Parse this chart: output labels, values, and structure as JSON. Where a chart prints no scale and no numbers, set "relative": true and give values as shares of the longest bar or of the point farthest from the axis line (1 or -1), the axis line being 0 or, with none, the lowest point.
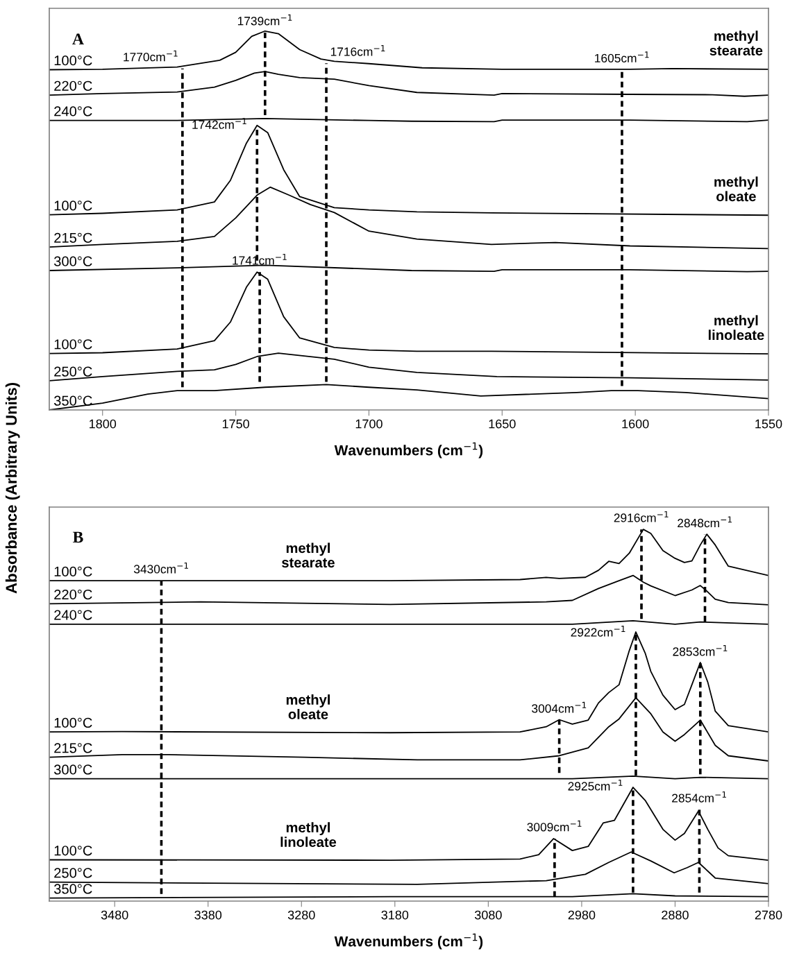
{
  "chart_data": [
    {
      "type": "line",
      "relative": true,
      "ylabel": "Absorbance (Arbitrary Units)",
      "xlabel": "Wavenumbers (cm$^{−1}$)",
      "xlim": [
        1820,
        1550
      ],
      "xticks": [
        1800,
        1750,
        1700,
        1650,
        1600,
        1550
      ],
      "tick_labels": "x",
      "grid": false,
      "legend": false,
      "annotations": [
        "A",
        "methyl\nstearate",
        "methyl\noleate",
        "methyl\nlinoleate",
        {
          "text": "1739cm$^{−1}$",
          "x": 1739,
          "y": 0.996
        },
        {
          "text": "1770cm$^{−1}$",
          "x": 1770,
          "y": 0.901
        },
        {
          "text": "1716cm$^{−1}$",
          "x": 1716,
          "y": 0.915
        },
        {
          "text": "1605cm$^{−1}$",
          "x": 1605,
          "y": 0.898
        },
        {
          "text": "1742cm$^{−1}$",
          "x": 1742,
          "y": 0.75
        },
        {
          "text": "1741cm$^{−1}$",
          "x": 1741,
          "y": 0.364
        }
      ],
      "series": [
        {
          "name": "100°C",
          "color": "#000000",
          "x": [
            1820,
            1800,
            1772,
            1756,
            1750,
            1744,
            1739,
            1734,
            1726,
            1718,
            1713,
            1700,
            1680,
            1650,
            1602,
            1586,
            1550
          ],
          "values": [
            0.898,
            0.899,
            0.905,
            0.923,
            0.944,
            0.986,
            1.0,
            0.993,
            0.951,
            0.926,
            0.92,
            0.914,
            0.903,
            0.899,
            0.899,
            0.901,
            0.899
          ]
        },
        {
          "name": "220°C",
          "color": "#000000",
          "x": [
            1820,
            1800,
            1772,
            1758,
            1750,
            1743,
            1739,
            1734,
            1726,
            1713,
            1700,
            1682,
            1653,
            1650,
            1602,
            1571,
            1559,
            1550
          ],
          "values": [
            0.831,
            0.835,
            0.839,
            0.852,
            0.87,
            0.889,
            0.893,
            0.886,
            0.877,
            0.873,
            0.856,
            0.838,
            0.831,
            0.835,
            0.833,
            0.832,
            0.828,
            0.831
          ]
        },
        {
          "name": "240°C",
          "color": "#000000",
          "x": [
            1820,
            1772,
            1739,
            1700,
            1684,
            1653,
            1650,
            1602,
            1558,
            1550
          ],
          "values": [
            0.764,
            0.764,
            0.769,
            0.764,
            0.762,
            0.761,
            0.765,
            0.765,
            0.761,
            0.765
          ]
        },
        {
          "name": "100°C",
          "color": "#000000",
          "x": [
            1820,
            1800,
            1772,
            1758,
            1752,
            1746,
            1742,
            1738,
            1732,
            1726,
            1713,
            1700,
            1682,
            1654,
            1550
          ],
          "values": [
            0.515,
            0.519,
            0.528,
            0.549,
            0.606,
            0.704,
            0.751,
            0.732,
            0.634,
            0.563,
            0.534,
            0.528,
            0.523,
            0.52,
            0.514
          ]
        },
        {
          "name": "215°C",
          "color": "#000000",
          "x": [
            1820,
            1800,
            1772,
            1758,
            1750,
            1742,
            1737,
            1730,
            1722,
            1713,
            1700,
            1682,
            1654,
            1630,
            1602,
            1550
          ],
          "values": [
            0.43,
            0.437,
            0.445,
            0.458,
            0.507,
            0.567,
            0.588,
            0.567,
            0.542,
            0.521,
            0.472,
            0.451,
            0.437,
            0.442,
            0.433,
            0.426
          ]
        },
        {
          "name": "300°C",
          "color": "#000000",
          "x": [
            1820,
            1772,
            1739,
            1684,
            1653,
            1650,
            1602,
            1558,
            1550
          ],
          "values": [
            0.368,
            0.375,
            0.382,
            0.368,
            0.366,
            0.37,
            0.37,
            0.365,
            0.366
          ]
        },
        {
          "name": "100°C",
          "color": "#000000",
          "x": [
            1820,
            1800,
            1772,
            1758,
            1752,
            1746,
            1742,
            1738,
            1732,
            1726,
            1713,
            1700,
            1682,
            1654,
            1550
          ],
          "values": [
            0.149,
            0.151,
            0.161,
            0.183,
            0.232,
            0.324,
            0.364,
            0.345,
            0.246,
            0.19,
            0.165,
            0.158,
            0.155,
            0.155,
            0.148
          ]
        },
        {
          "name": "250°C",
          "color": "#000000",
          "x": [
            1820,
            1800,
            1772,
            1758,
            1750,
            1742,
            1734,
            1713,
            1700,
            1682,
            1652,
            1602,
            1550
          ],
          "values": [
            0.077,
            0.088,
            0.102,
            0.106,
            0.12,
            0.141,
            0.15,
            0.134,
            0.113,
            0.099,
            0.088,
            0.085,
            0.079
          ]
        },
        {
          "name": "350°C",
          "color": "#000000",
          "x": [
            1820,
            1800,
            1783,
            1772,
            1758,
            1739,
            1716,
            1700,
            1682,
            1658,
            1622,
            1609,
            1599,
            1581,
            1550
          ],
          "values": [
            0,
            0.018,
            0.042,
            0.051,
            0.051,
            0.06,
            0.067,
            0.06,
            0.053,
            0.037,
            0.046,
            0.051,
            0.051,
            0.046,
            0.03
          ]
        },
        {
          "type": "line",
          "line_style": "dashed",
          "color": "#000000",
          "x": [
            1770,
            1770
          ],
          "values": [
            0.901,
            0.06
          ]
        },
        {
          "type": "line",
          "line_style": "dashed",
          "color": "#000000",
          "x": [
            1739,
            1739
          ],
          "values": [
            0.996,
            0.778
          ]
        },
        {
          "type": "line",
          "line_style": "dashed",
          "color": "#000000",
          "x": [
            1742,
            1742
          ],
          "values": [
            0.75,
            0.394
          ]
        },
        {
          "type": "line",
          "line_style": "dashed",
          "color": "#000000",
          "x": [
            1741,
            1741
          ],
          "values": [
            0.364,
            0.074
          ]
        },
        {
          "type": "line",
          "line_style": "dashed",
          "color": "#000000",
          "x": [
            1716,
            1716
          ],
          "values": [
            0.915,
            0.074
          ]
        },
        {
          "type": "line",
          "line_style": "dashed",
          "color": "#000000",
          "x": [
            1605,
            1605
          ],
          "values": [
            0.898,
            0.063
          ]
        }
      ]
    },
    {
      "type": "line",
      "relative": true,
      "xlabel": "Wavenumbers (cm$^{−1}$)",
      "xlim": [
        3550,
        2780
      ],
      "xticks": [
        3480,
        3380,
        3280,
        3180,
        3080,
        2980,
        2880,
        2780
      ],
      "tick_labels": "x",
      "grid": false,
      "legend": false,
      "annotations": [
        "B",
        "methyl\nstearate",
        "methyl\noleate",
        "methyl\nlinoleate",
        {
          "text": "3430cm$^{−1}$",
          "x": 3430,
          "y": 0.862
        },
        {
          "text": "2916cm$^{−1}$",
          "x": 2916,
          "y": 1.0
        },
        {
          "text": "2848cm$^{−1}$",
          "x": 2848,
          "y": 0.986
        },
        {
          "text": "2922cm$^{−1}$",
          "x": 2922,
          "y": 0.72
        },
        {
          "text": "2853cm$^{−1}$",
          "x": 2853,
          "y": 0.64
        },
        {
          "text": "3004cm$^{−1}$",
          "x": 3004,
          "y": 0.487
        },
        {
          "text": "2925cm$^{−1}$",
          "x": 2925,
          "y": 0.306
        },
        {
          "text": "3009cm$^{−1}$",
          "x": 3009,
          "y": 0.168
        },
        {
          "text": "2854cm$^{−1}$",
          "x": 2854,
          "y": 0.246
        }
      ],
      "series": [
        {
          "name": "100°C",
          "color": "#000000",
          "x": [
            3550,
            3185,
            3046,
            3018,
            3004,
            2976,
            2962,
            2951,
            2940,
            2929,
            2914,
            2906,
            2893,
            2880,
            2870,
            2862,
            2853,
            2846,
            2837,
            2823,
            2780
          ],
          "values": [
            0.862,
            0.862,
            0.865,
            0.871,
            0.868,
            0.871,
            0.89,
            0.914,
            0.908,
            0.936,
            1.0,
            0.989,
            0.943,
            0.922,
            0.911,
            0.915,
            0.958,
            0.987,
            0.958,
            0.901,
            0.876
          ]
        },
        {
          "name": "220°C",
          "color": "#000000",
          "x": [
            3550,
            3388,
            3185,
            3018,
            2990,
            2962,
            2940,
            2925,
            2914,
            2906,
            2880,
            2862,
            2853,
            2846,
            2837,
            2823,
            2780
          ],
          "values": [
            0.8,
            0.805,
            0.798,
            0.805,
            0.809,
            0.841,
            0.862,
            0.876,
            0.858,
            0.848,
            0.822,
            0.837,
            0.849,
            0.834,
            0.812,
            0.803,
            0.797
          ]
        },
        {
          "name": "240°C",
          "color": "#000000",
          "x": [
            3550,
            3185,
            2990,
            2925,
            2880,
            2853,
            2780
          ],
          "values": [
            0.745,
            0.745,
            0.745,
            0.754,
            0.745,
            0.751,
            0.745
          ]
        },
        {
          "name": "100°C",
          "color": "#000000",
          "x": [
            3550,
            3472,
            3185,
            3046,
            3018,
            3004,
            2990,
            2973,
            2962,
            2951,
            2940,
            2929,
            2922,
            2912,
            2906,
            2893,
            2880,
            2870,
            2862,
            2853,
            2845,
            2837,
            2823,
            2780
          ],
          "values": [
            0.455,
            0.456,
            0.453,
            0.455,
            0.469,
            0.488,
            0.476,
            0.487,
            0.533,
            0.561,
            0.582,
            0.674,
            0.724,
            0.667,
            0.618,
            0.554,
            0.515,
            0.529,
            0.582,
            0.642,
            0.589,
            0.511,
            0.472,
            0.455
          ]
        },
        {
          "name": "215°C",
          "color": "#000000",
          "x": [
            3550,
            3472,
            3422,
            3277,
            3156,
            3046,
            3004,
            2973,
            2951,
            2940,
            2922,
            2906,
            2893,
            2880,
            2870,
            2853,
            2837,
            2823,
            2780
          ],
          "values": [
            0.387,
            0.394,
            0.394,
            0.387,
            0.38,
            0.38,
            0.391,
            0.412,
            0.469,
            0.49,
            0.547,
            0.504,
            0.455,
            0.43,
            0.448,
            0.487,
            0.419,
            0.391,
            0.377
          ]
        },
        {
          "name": "300°C",
          "color": "#000000",
          "x": [
            3550,
            3185,
            2990,
            2925,
            2880,
            2853,
            2780
          ],
          "values": [
            0.329,
            0.329,
            0.329,
            0.336,
            0.329,
            0.333,
            0.329
          ]
        },
        {
          "name": "100°C",
          "color": "#000000",
          "x": [
            3550,
            3185,
            3046,
            3026,
            3010,
            2990,
            2973,
            2957,
            2945,
            2925,
            2912,
            2893,
            2880,
            2870,
            2855,
            2845,
            2834,
            2823,
            2780
          ],
          "values": [
            0.111,
            0.11,
            0.113,
            0.125,
            0.168,
            0.136,
            0.147,
            0.21,
            0.217,
            0.306,
            0.271,
            0.193,
            0.164,
            0.182,
            0.242,
            0.193,
            0.143,
            0.122,
            0.11
          ]
        },
        {
          "name": "250°C",
          "color": "#000000",
          "x": [
            3550,
            3156,
            3018,
            2976,
            2951,
            2927,
            2906,
            2881,
            2867,
            2855,
            2837,
            2780
          ],
          "values": [
            0.051,
            0.045,
            0.055,
            0.072,
            0.104,
            0.132,
            0.108,
            0.076,
            0.09,
            0.104,
            0.062,
            0.047
          ]
        },
        {
          "name": "350°C",
          "color": "#000000",
          "x": [
            3550,
            3185,
            2990,
            2925,
            2880,
            2780
          ],
          "values": [
            0.008,
            0.012,
            0.012,
            0.02,
            0.014,
            0.012
          ]
        },
        {
          "type": "line",
          "line_style": "dashed",
          "color": "#000000",
          "x": [
            3430,
            3430
          ],
          "values": [
            0.862,
            0.019
          ]
        },
        {
          "type": "line",
          "line_style": "dashed",
          "color": "#000000",
          "x": [
            2916,
            2916
          ],
          "values": [
            1.0,
            0.759
          ]
        },
        {
          "type": "line",
          "line_style": "dashed",
          "color": "#000000",
          "x": [
            2848,
            2848
          ],
          "values": [
            0.986,
            0.752
          ]
        },
        {
          "type": "line",
          "line_style": "dashed",
          "color": "#000000",
          "x": [
            3004,
            3004
          ],
          "values": [
            0.487,
            0.345
          ]
        },
        {
          "type": "line",
          "line_style": "dashed",
          "color": "#000000",
          "x": [
            2922,
            2922
          ],
          "values": [
            0.72,
            0.338
          ]
        },
        {
          "type": "line",
          "line_style": "dashed",
          "color": "#000000",
          "x": [
            2853,
            2853
          ],
          "values": [
            0.64,
            0.341
          ]
        },
        {
          "type": "line",
          "line_style": "dashed",
          "color": "#000000",
          "x": [
            3009,
            3009
          ],
          "values": [
            0.168,
            0.011
          ]
        },
        {
          "type": "line",
          "line_style": "dashed",
          "color": "#000000",
          "x": [
            2925,
            2925
          ],
          "values": [
            0.306,
            0.023
          ]
        },
        {
          "type": "line",
          "line_style": "dashed",
          "color": "#000000",
          "x": [
            2854,
            2854
          ],
          "values": [
            0.246,
            0.023
          ]
        }
      ]
    }
  ]
}
